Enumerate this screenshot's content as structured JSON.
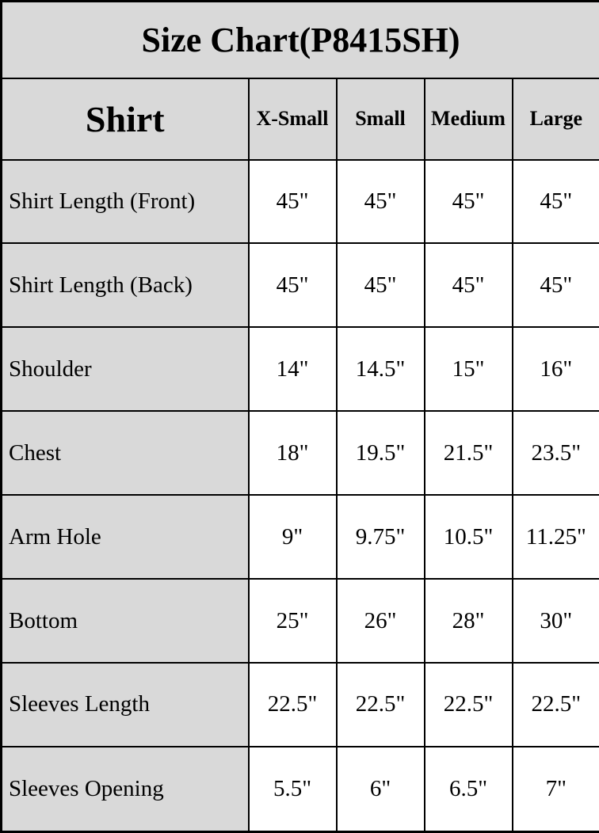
{
  "chart_data": {
    "type": "table",
    "title": "Size Chart(P8415SH)",
    "corner_label": "Shirt",
    "columns": [
      "X-Small",
      "Small",
      "Medium",
      "Large"
    ],
    "rows": [
      {
        "label": "Shirt Length (Front)",
        "values": [
          "45\"",
          "45\"",
          "45\"",
          "45\""
        ]
      },
      {
        "label": "Shirt Length (Back)",
        "values": [
          "45\"",
          "45\"",
          "45\"",
          "45\""
        ]
      },
      {
        "label": "Shoulder",
        "values": [
          "14\"",
          "14.5\"",
          "15\"",
          "16\""
        ]
      },
      {
        "label": "Chest",
        "values": [
          "18\"",
          "19.5\"",
          "21.5\"",
          "23.5\""
        ]
      },
      {
        "label": "Arm Hole",
        "values": [
          "9\"",
          "9.75\"",
          "10.5\"",
          "11.25\""
        ]
      },
      {
        "label": "Bottom",
        "values": [
          "25\"",
          "26\"",
          "28\"",
          "30\""
        ]
      },
      {
        "label": "Sleeves Length",
        "values": [
          "22.5\"",
          "22.5\"",
          "22.5\"",
          "22.5\""
        ]
      },
      {
        "label": "Sleeves Opening",
        "values": [
          "5.5\"",
          "6\"",
          "6.5\"",
          "7\""
        ]
      }
    ],
    "unit": "inches",
    "layout": {
      "label_column_bg": "#d9d9d9",
      "value_cell_bg": "#ffffff",
      "border_color": "#000000",
      "text_color": "#000000"
    }
  }
}
